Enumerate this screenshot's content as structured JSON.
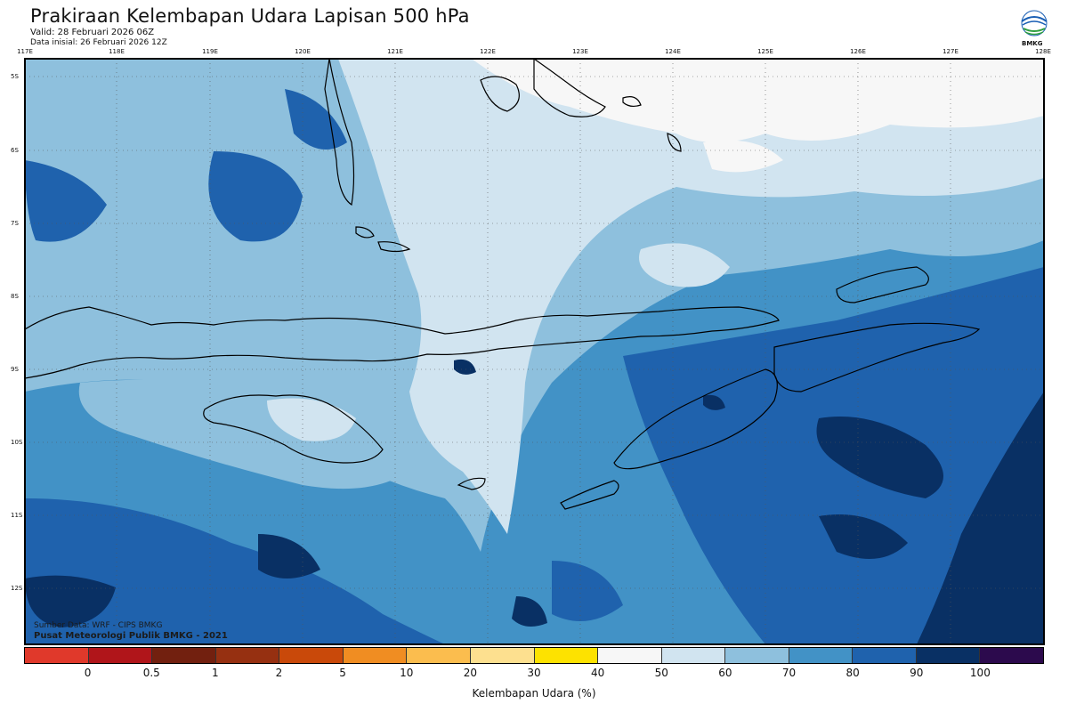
{
  "header": {
    "title": "Prakiraan Kelembapan Udara Lapisan 500 hPa",
    "valid": "Valid: 28 Februari 2026 06Z",
    "initial": "Data inisial: 26 Februari 2026 12Z",
    "logo_text": "BMKG"
  },
  "axes": {
    "lon_labels": [
      "117E",
      "118E",
      "119E",
      "120E",
      "121E",
      "122E",
      "123E",
      "124E",
      "125E",
      "126E",
      "127E",
      "128E"
    ],
    "lat_labels": [
      "5S",
      "6S",
      "7S",
      "8S",
      "9S",
      "10S",
      "11S",
      "12S"
    ]
  },
  "credits": {
    "source": "Sumber Data: WRF - CIPS BMKG",
    "institution": "Pusat Meteorologi Publik BMKG - 2021"
  },
  "colorbar": {
    "colors": [
      "#e0392b",
      "#b0151a",
      "#72200f",
      "#963011",
      "#c9490a",
      "#f08d22",
      "#fbbd4e",
      "#fde08f",
      "#fde200",
      "#f7f7f7",
      "#d1e4f0",
      "#8ec0dd",
      "#4292c6",
      "#1f62ad",
      "#093064",
      "#2c0a4d"
    ],
    "labels": [
      "0",
      "0.5",
      "1",
      "2",
      "5",
      "10",
      "20",
      "30",
      "40",
      "50",
      "60",
      "70",
      "80",
      "90",
      "100"
    ],
    "title": "Kelembapan Udara (%)"
  },
  "map_colors": {
    "c50": "#f7f7f7",
    "c60": "#d1e4f0",
    "c70": "#8ec0dd",
    "c80": "#4292c6",
    "c90": "#1f62ad",
    "c100": "#093064"
  }
}
